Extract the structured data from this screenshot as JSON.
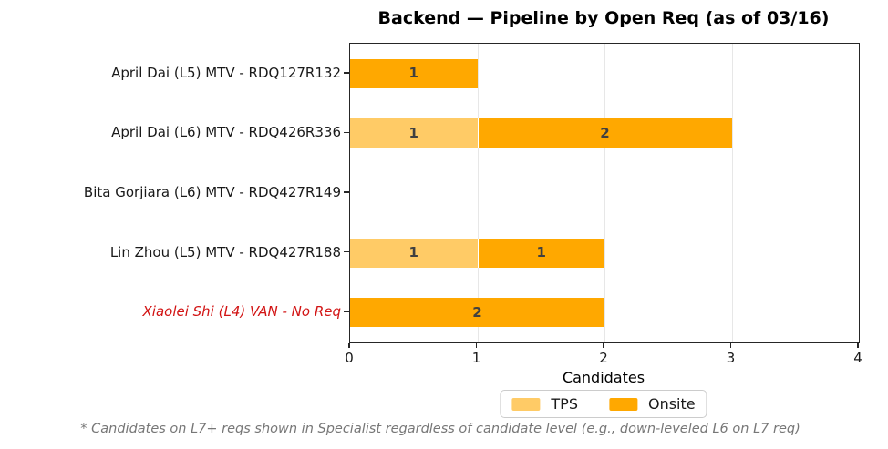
{
  "chart_data": {
    "type": "bar",
    "orientation": "horizontal",
    "stacked": true,
    "title": "Backend — Pipeline by Open Req (as of 03/16)",
    "xlabel": "Candidates",
    "xlim": [
      0,
      4
    ],
    "xticks": [
      0,
      1,
      2,
      3,
      4
    ],
    "grid": "vertical",
    "legend_position": "bottom",
    "categories": [
      "April Dai (L5) MTV - RDQ127R132",
      "April Dai (L6) MTV - RDQ426R336",
      "Bita Gorjiara (L6) MTV - RDQ427R149",
      "Lin Zhou (L5) MTV - RDQ427R188",
      "Xiaolei Shi (L4) VAN - No Req"
    ],
    "category_label_colors": [
      "#1a1a1a",
      "#1a1a1a",
      "#1a1a1a",
      "#1a1a1a",
      "#d21414"
    ],
    "category_label_italic": [
      false,
      false,
      false,
      false,
      true
    ],
    "series": [
      {
        "name": "TPS",
        "color": "#FFCB66",
        "values": [
          0,
          1,
          0,
          1,
          0
        ]
      },
      {
        "name": "Onsite",
        "color": "#FFA800",
        "values": [
          1,
          2,
          0,
          1,
          2
        ]
      }
    ],
    "bar_label_color": "#404040",
    "footnote": "* Candidates on L7+ reqs shown in Specialist regardless of candidate level (e.g., down-leveled L6 on L7 req)"
  }
}
